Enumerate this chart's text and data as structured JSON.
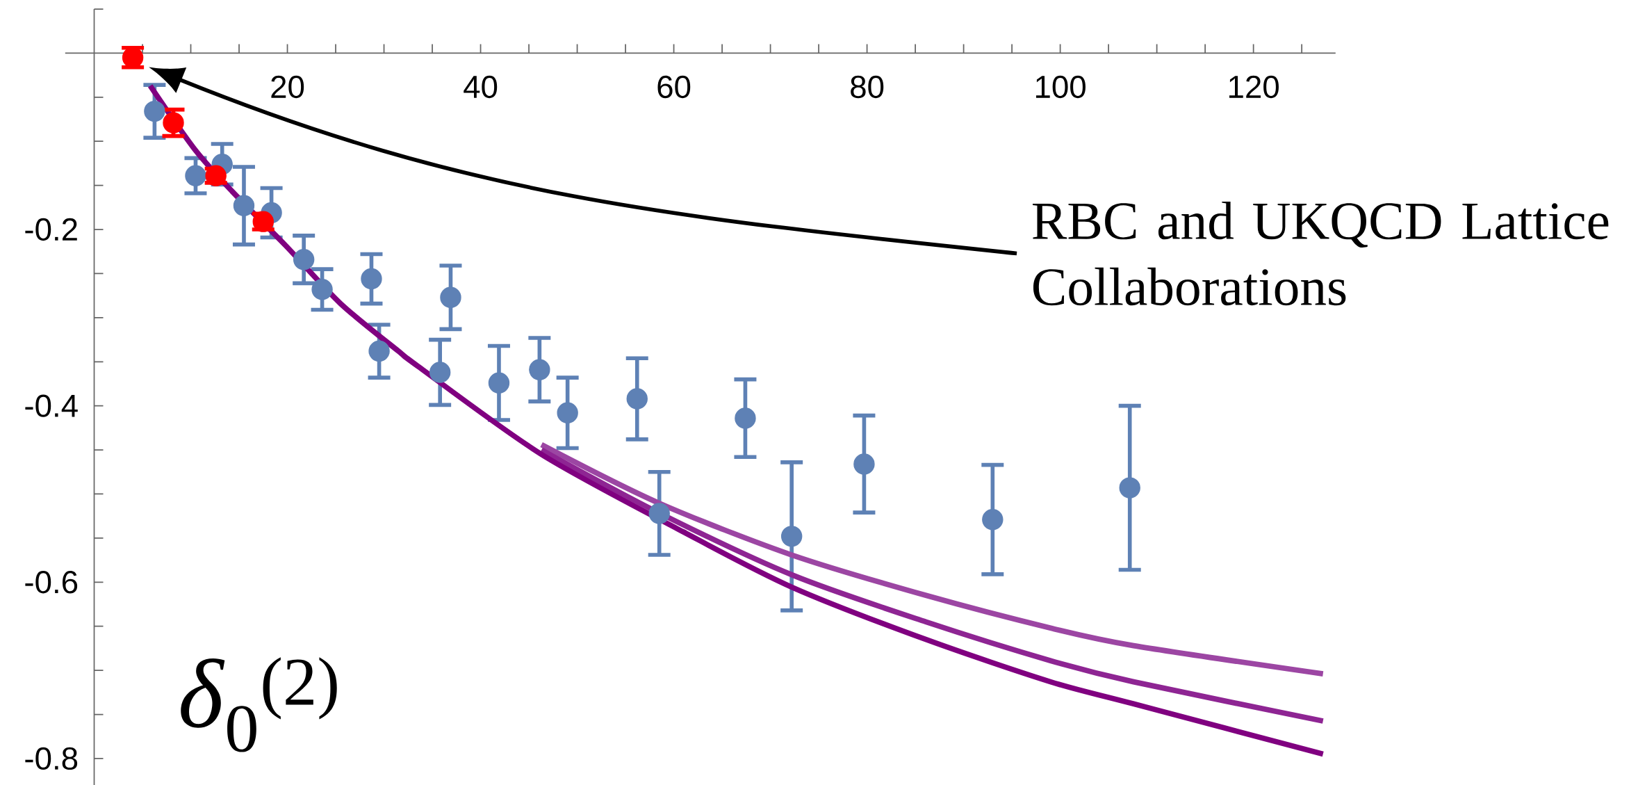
{
  "chart_data": {
    "type": "scatter",
    "ylabel": "*δ*$_{0}$$^{(2)}$",
    "xlim": [
      -3,
      128.5
    ],
    "ylim": [
      -0.83,
      0.05
    ],
    "xticks": [
      {
        "value": 5,
        "label": null
      },
      {
        "value": 10,
        "label": null
      },
      {
        "value": 15,
        "label": null
      },
      20,
      {
        "value": 25,
        "label": null
      },
      {
        "value": 30,
        "label": null
      },
      {
        "value": 35,
        "label": null
      },
      40,
      {
        "value": 45,
        "label": null
      },
      {
        "value": 50,
        "label": null
      },
      {
        "value": 55,
        "label": null
      },
      60,
      {
        "value": 65,
        "label": null
      },
      {
        "value": 70,
        "label": null
      },
      {
        "value": 75,
        "label": null
      },
      80,
      {
        "value": 85,
        "label": null
      },
      {
        "value": 90,
        "label": null
      },
      {
        "value": 95,
        "label": null
      },
      100,
      {
        "value": 105,
        "label": null
      },
      {
        "value": 110,
        "label": null
      },
      {
        "value": 115,
        "label": null
      },
      120,
      {
        "value": 125,
        "label": null
      }
    ],
    "yticks": [
      -0.8,
      {
        "value": -0.75,
        "label": null
      },
      {
        "value": -0.7,
        "label": null
      },
      {
        "value": -0.65,
        "label": null
      },
      -0.6,
      {
        "value": -0.55,
        "label": null
      },
      {
        "value": -0.5,
        "label": null
      },
      {
        "value": -0.45,
        "label": null
      },
      -0.4,
      {
        "value": -0.35,
        "label": null
      },
      {
        "value": -0.3,
        "label": null
      },
      {
        "value": -0.25,
        "label": null
      },
      -0.2,
      {
        "value": -0.15,
        "label": null
      },
      {
        "value": -0.1,
        "label": null
      },
      {
        "value": -0.05,
        "label": null
      },
      {
        "value": 0.05,
        "label": null
      }
    ],
    "annotations": [
      "RBC and UKQCD Lattice Collaborations"
    ],
    "series": [
      {
        "color": "#5e81b5",
        "marker": "circle",
        "x": [
          6.25,
          10.5,
          13.25,
          15.5,
          18.35,
          21.7,
          23.6,
          28.7,
          29.5,
          35.8,
          36.9,
          41.9,
          46.1,
          49.0,
          56.2,
          58.5,
          67.4,
          72.2,
          79.7,
          93.0,
          107.2
        ],
        "values": [
          -0.066,
          -0.139,
          -0.126,
          -0.173,
          -0.181,
          -0.234,
          -0.268,
          -0.256,
          -0.338,
          -0.362,
          -0.277,
          -0.374,
          -0.359,
          -0.408,
          -0.392,
          -0.522,
          -0.414,
          -0.548,
          -0.466,
          -0.529,
          -0.493
        ],
        "errors": [
          0.03,
          0.02,
          0.023,
          0.044,
          0.028,
          0.027,
          0.023,
          0.028,
          0.03,
          0.037,
          0.036,
          0.042,
          0.036,
          0.04,
          0.046,
          0.047,
          0.044,
          0.084,
          0.055,
          0.062,
          0.093
        ]
      },
      {
        "type": "line",
        "marker": "none",
        "color": "#9c46a3",
        "x": [
          46.3,
          58.4,
          72.3,
          86.1,
          99,
          107.6,
          127.2
        ],
        "values": [
          -0.444,
          -0.51,
          -0.5695,
          -0.615,
          -0.652,
          -0.672,
          -0.704
        ]
      },
      {
        "type": "line",
        "marker": "none",
        "color": "#8e2593",
        "x": [
          46.3,
          58.4,
          72.3,
          86.1,
          99,
          107.6,
          127.2
        ],
        "values": [
          -0.45,
          -0.521,
          -0.592,
          -0.645,
          -0.689,
          -0.713,
          -0.7575
        ]
      },
      {
        "type": "line",
        "marker": "none",
        "color": "#800080",
        "x": [
          5.8,
          10.4,
          14.3,
          19.8,
          25.5,
          31.5,
          33.5,
          46.3,
          61,
          72.3,
          86.1,
          99,
          107.6,
          127.2
        ],
        "values": [
          -0.037,
          -0.109,
          -0.157,
          -0.218,
          -0.284,
          -0.338,
          -0.355,
          -0.455,
          -0.543,
          -0.606,
          -0.665,
          -0.713,
          -0.738,
          -0.795
        ]
      },
      {
        "color": "#ff0000",
        "marker": "circle",
        "x": [
          4.0,
          8.2,
          12.6,
          17.5
        ],
        "values": [
          -0.005,
          -0.079,
          -0.139,
          -0.191
        ],
        "errors": [
          0.011,
          0.015,
          0.008,
          0.009
        ]
      }
    ]
  }
}
